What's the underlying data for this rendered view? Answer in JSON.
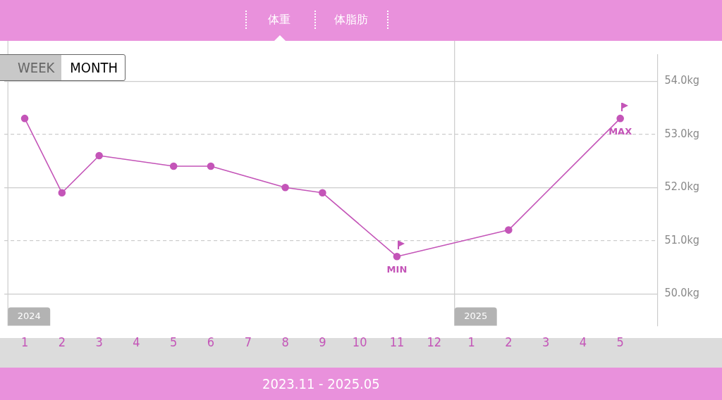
{
  "chart_data": {
    "type": "line",
    "x": [
      "2024-01",
      "2024-02",
      "2024-03",
      "2024-04",
      "2024-05",
      "2024-06",
      "2024-07",
      "2024-08",
      "2024-09",
      "2024-10",
      "2024-11",
      "2024-12",
      "2025-01",
      "2025-02",
      "2025-03",
      "2025-04",
      "2025-05"
    ],
    "series": [
      {
        "color": "#c455b8",
        "values": [
          53.3,
          51.9,
          52.6,
          null,
          52.4,
          52.4,
          null,
          52.0,
          51.9,
          null,
          50.7,
          null,
          null,
          51.2,
          null,
          null,
          53.3
        ]
      }
    ],
    "xlim": [
      "2023-12-15",
      "2025-06-01"
    ],
    "xticks": [
      {
        "value": "2024-01",
        "label": "1"
      },
      {
        "value": "2024-02",
        "label": "2"
      },
      {
        "value": "2024-03",
        "label": "3"
      },
      {
        "value": "2024-04",
        "label": "4"
      },
      {
        "value": "2024-05",
        "label": "5"
      },
      {
        "value": "2024-06",
        "label": "6"
      },
      {
        "value": "2024-07",
        "label": "7"
      },
      {
        "value": "2024-08",
        "label": "8"
      },
      {
        "value": "2024-09",
        "label": "9"
      },
      {
        "value": "2024-10",
        "label": "10"
      },
      {
        "value": "2024-11",
        "label": "11"
      },
      {
        "value": "2024-12",
        "label": "12"
      },
      {
        "value": "2025-01",
        "label": "1"
      },
      {
        "value": "2025-02",
        "label": "2"
      },
      {
        "value": "2025-03",
        "label": "3"
      },
      {
        "value": "2025-04",
        "label": "4"
      },
      {
        "value": "2025-05",
        "label": "5"
      }
    ],
    "ylim": [
      49.4,
      54.5
    ],
    "yticks": [
      {
        "value": 50,
        "label": "50.0kg"
      },
      {
        "value": 51,
        "label": "51.0kg"
      },
      {
        "value": 52,
        "label": "52.0kg"
      },
      {
        "value": 53,
        "label": "53.0kg"
      },
      {
        "value": 54,
        "label": "54.0kg"
      }
    ],
    "grid": "y",
    "legend": false,
    "marker": "circle",
    "line_style": "solid",
    "ref_lines": [
      {
        "axis": "x",
        "value": "2023-12-18",
        "label": "2024",
        "color": "#cccccc"
      },
      {
        "axis": "x",
        "value": "2024-12-18",
        "label": "2025",
        "color": "#cccccc"
      }
    ],
    "annotations": [
      "体重",
      "体脂肪",
      "WEEK",
      "MONTH",
      "2023.11 - 2025.05",
      {
        "text": "MIN",
        "x": "2024-11",
        "y": 50.7
      },
      {
        "text": "MAX",
        "x": "2025-05",
        "y": 53.3
      }
    ]
  }
}
